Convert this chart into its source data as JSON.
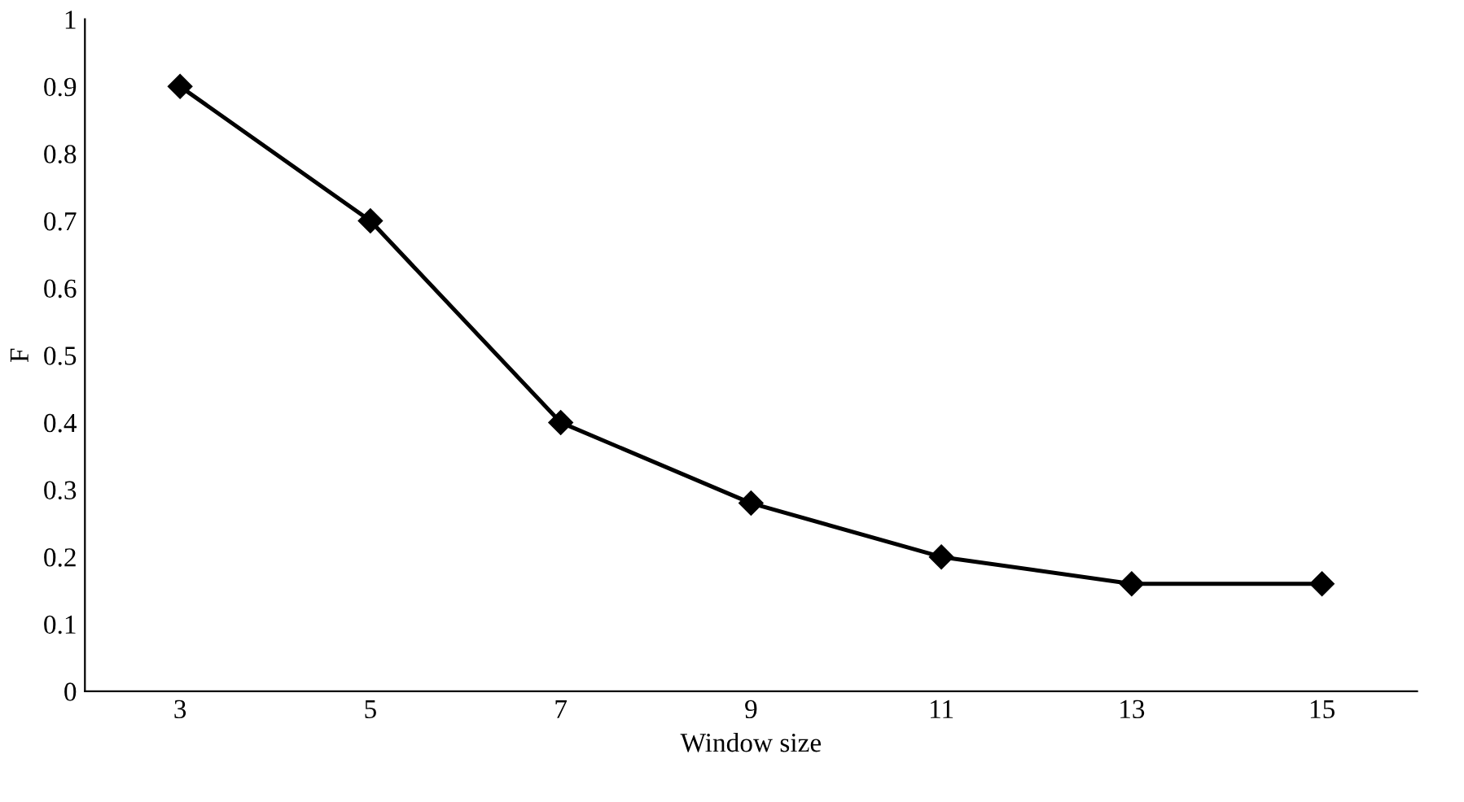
{
  "chart_data": {
    "type": "line",
    "xlabel": "Window size",
    "ylabel": "F",
    "categories": [
      "3",
      "5",
      "7",
      "9",
      "11",
      "13",
      "15"
    ],
    "series": [
      {
        "color": "#000000",
        "values": [
          0.9,
          0.7,
          0.4,
          0.28,
          0.2,
          0.16,
          0.16
        ]
      }
    ],
    "ylim": [
      0,
      1
    ],
    "yticks": [
      0,
      0.1,
      0.2,
      0.3,
      0.4,
      0.5,
      0.6,
      0.7,
      0.8,
      0.9,
      1
    ],
    "marker": "diamond",
    "line_style": "solid"
  }
}
